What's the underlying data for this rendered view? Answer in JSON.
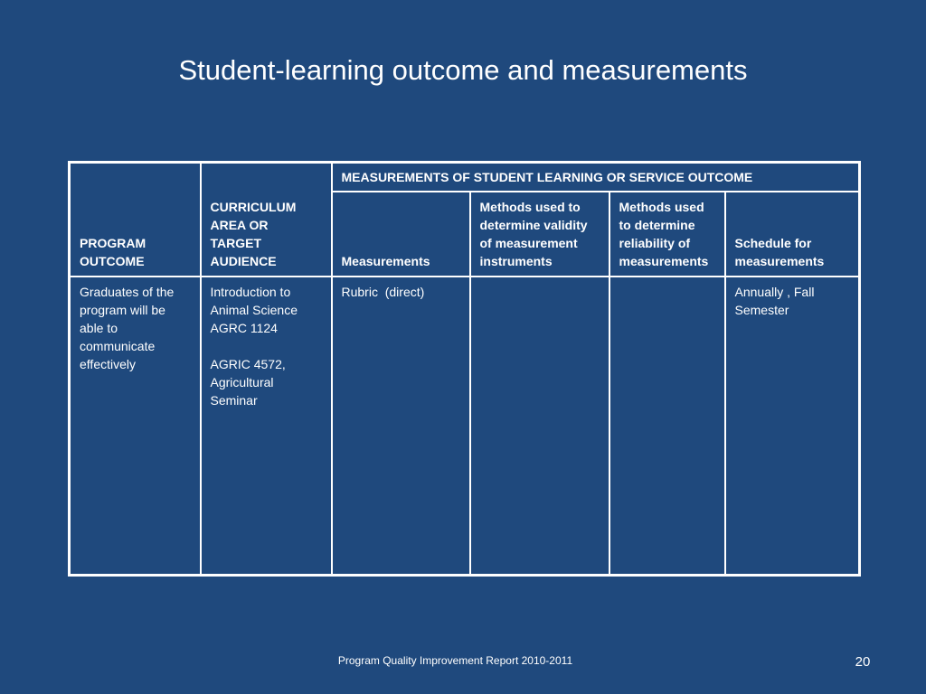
{
  "slide": {
    "title": "Student-learning outcome and measurements",
    "footer": "Program Quality Improvement Report 2010-2011",
    "page_number": "20"
  },
  "table": {
    "group_header": "MEASUREMENTS OF STUDENT LEARNING OR SERVICE OUTCOME",
    "columns": [
      "PROGRAM OUTCOME",
      "CURRICULUM AREA OR TARGET AUDIENCE",
      "Measurements",
      "Methods used to determine validity of measurement instruments",
      "Methods used to determine reliability of measurements",
      "Schedule for measurements"
    ],
    "row": {
      "program_outcome": "Graduates of the program will be able to communicate effectively",
      "curriculum_lines": [
        "Introduction to Animal Science AGRC 1124",
        "AGRIC 4572, Agricultural Seminar"
      ],
      "measurements": "Rubric  (direct)",
      "validity_methods": "",
      "reliability_methods": "",
      "schedule": "Annually , Fall Semester"
    }
  }
}
